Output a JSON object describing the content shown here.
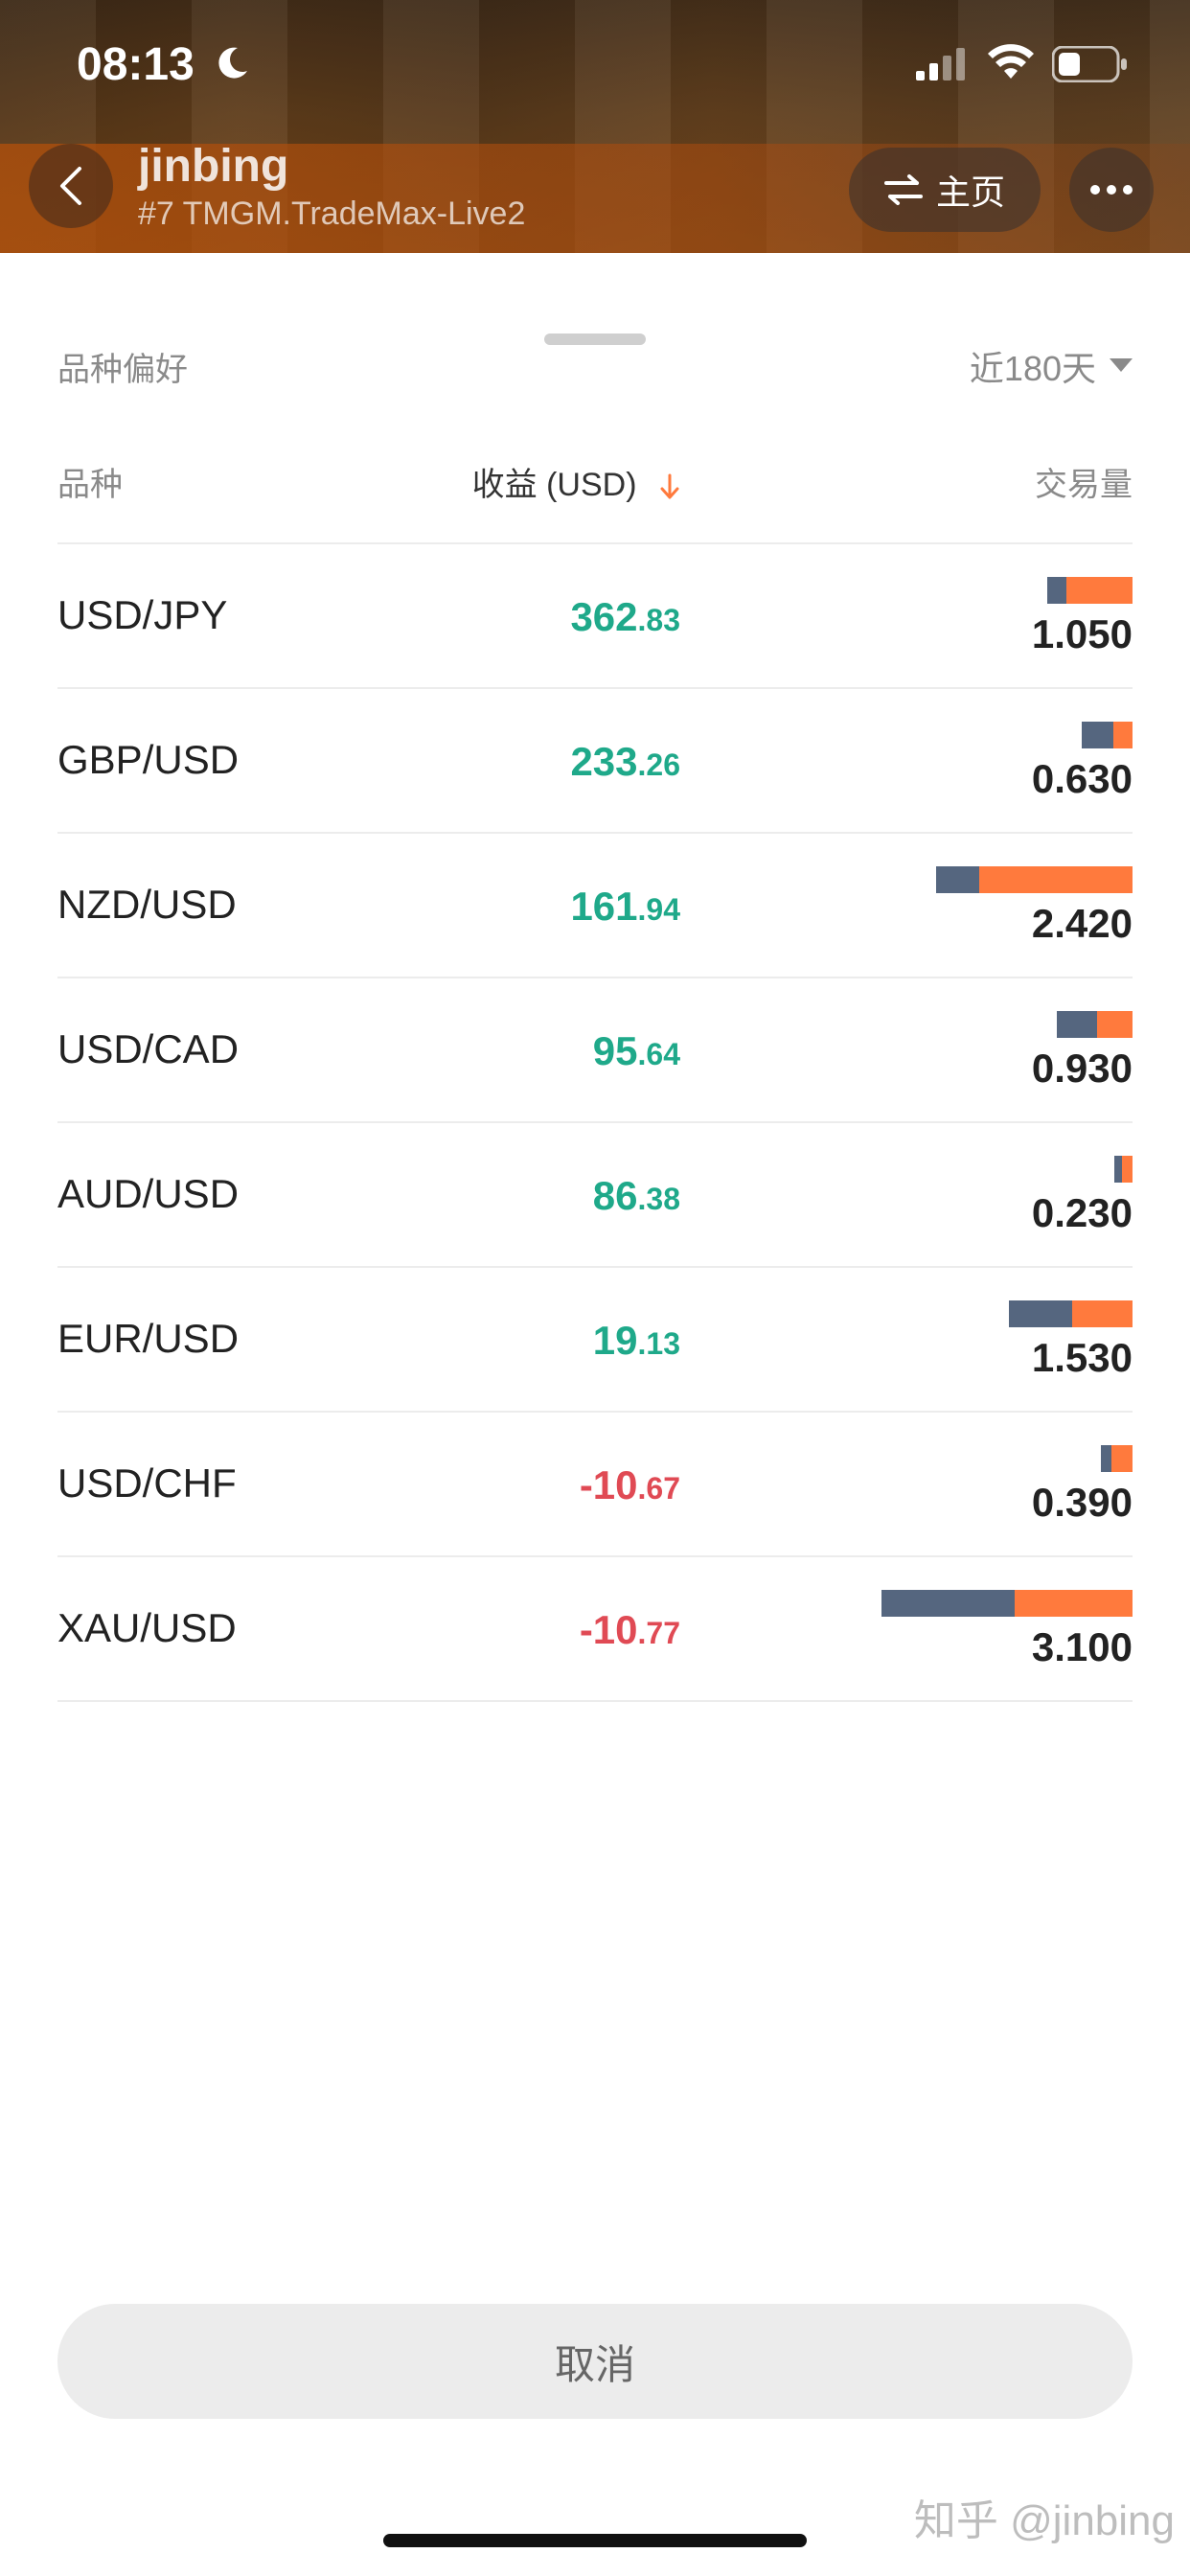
{
  "status_bar": {
    "time": "08:13"
  },
  "header": {
    "name": "jinbing",
    "server": "#7 TMGM.TradeMax-Live2",
    "home_label": "主页"
  },
  "sheet": {
    "title": "品种偏好",
    "period": "近180天",
    "columns": {
      "symbol": "品种",
      "profit": "收益 (USD)",
      "volume": "交易量"
    },
    "rows": [
      {
        "symbol": "USD/JPY",
        "profit_int": "362",
        "profit_dec": ".83",
        "volume": "1.050",
        "buy": 0.22,
        "sell": 0.78
      },
      {
        "symbol": "GBP/USD",
        "profit_int": "233",
        "profit_dec": ".26",
        "volume": "0.630",
        "buy": 0.62,
        "sell": 0.38
      },
      {
        "symbol": "NZD/USD",
        "profit_int": "161",
        "profit_dec": ".94",
        "volume": "2.420",
        "buy": 0.22,
        "sell": 0.78
      },
      {
        "symbol": "USD/CAD",
        "profit_int": "95",
        "profit_dec": ".64",
        "volume": "0.930",
        "buy": 0.53,
        "sell": 0.47
      },
      {
        "symbol": "AUD/USD",
        "profit_int": "86",
        "profit_dec": ".38",
        "volume": "0.230",
        "buy": 0.45,
        "sell": 0.55
      },
      {
        "symbol": "EUR/USD",
        "profit_int": "19",
        "profit_dec": ".13",
        "volume": "1.530",
        "buy": 0.51,
        "sell": 0.49
      },
      {
        "symbol": "USD/CHF",
        "profit_int": "-10",
        "profit_dec": ".67",
        "volume": "0.390",
        "buy": 0.33,
        "sell": 0.67
      },
      {
        "symbol": "XAU/USD",
        "profit_int": "-10",
        "profit_dec": ".77",
        "volume": "3.100",
        "buy": 0.53,
        "sell": 0.47
      }
    ],
    "cancel_label": "取消"
  },
  "watermark": "知乎 @jinbing",
  "colors": {
    "positive": "#1fa98a",
    "negative": "#e04a54",
    "buy_bar": "#55667f",
    "sell_bar": "#ff7a3d"
  }
}
